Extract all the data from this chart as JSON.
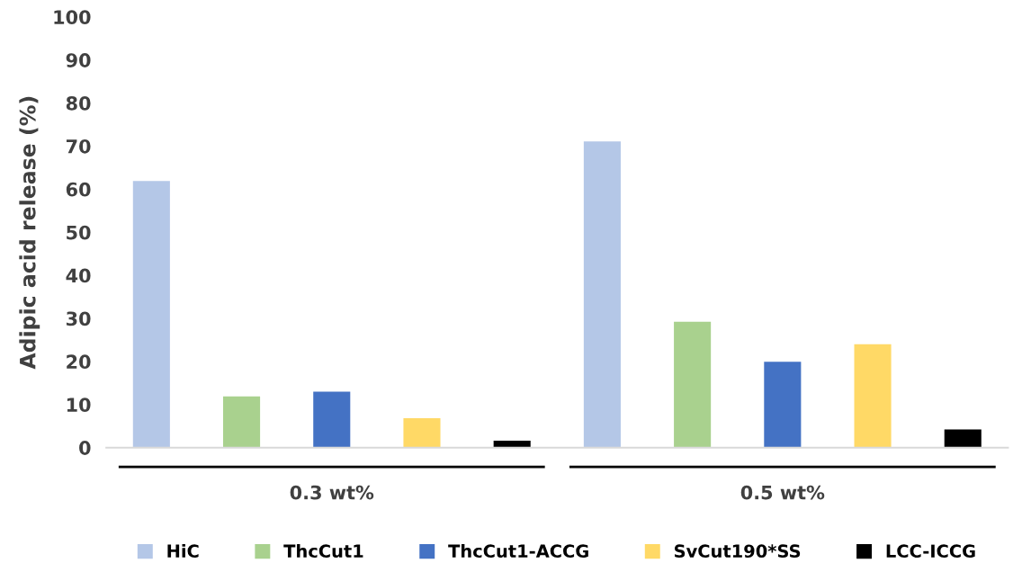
{
  "chart_data": {
    "type": "bar",
    "ylabel": "Adipic acid release (%)",
    "categories": [
      "0.3 wt%",
      "0.5 wt%"
    ],
    "series": [
      {
        "name": "HiC",
        "color": "#b4c7e7",
        "values": [
          61.9,
          71.1
        ]
      },
      {
        "name": "ThcCut1",
        "color": "#a9d18e",
        "values": [
          11.9,
          29.2
        ]
      },
      {
        "name": "ThcCut1-ACCG",
        "color": "#4472c4",
        "values": [
          13.0,
          19.9
        ]
      },
      {
        "name": "SvCut190*SS",
        "color": "#ffd966",
        "values": [
          6.8,
          24.0
        ]
      },
      {
        "name": "LCC-ICCG",
        "color": "#000000",
        "values": [
          1.6,
          4.2
        ]
      }
    ],
    "ylim": [
      0,
      100
    ],
    "yticks": [
      0,
      10,
      20,
      30,
      40,
      50,
      60,
      70,
      80,
      90,
      100
    ],
    "grid": false,
    "legend": "bottom"
  }
}
